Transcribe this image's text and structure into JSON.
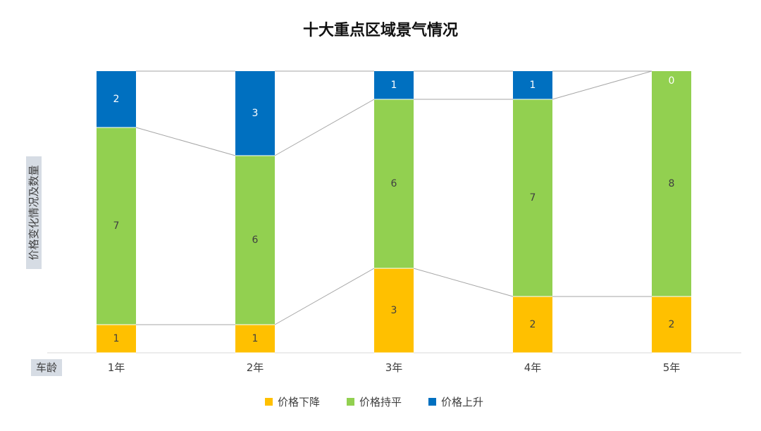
{
  "chart_data": {
    "type": "bar",
    "stacked": true,
    "title": "十大重点区域景气情况",
    "xlabel": "车龄",
    "ylabel": "价格变化情况及数量",
    "categories": [
      "1年",
      "2年",
      "3年",
      "4年",
      "5年"
    ],
    "series": [
      {
        "name": "价格下降",
        "values": [
          1,
          1,
          3,
          2,
          2
        ],
        "color": "#FFC000"
      },
      {
        "name": "价格持平",
        "values": [
          7,
          6,
          6,
          7,
          8
        ],
        "color": "#92D050"
      },
      {
        "name": "价格上升",
        "values": [
          2,
          3,
          1,
          1,
          0
        ],
        "color": "#0070C0"
      }
    ],
    "ylim": [
      0,
      10
    ],
    "grid": false,
    "legend": "bottom",
    "data_labels": true,
    "connector_lines": true
  }
}
